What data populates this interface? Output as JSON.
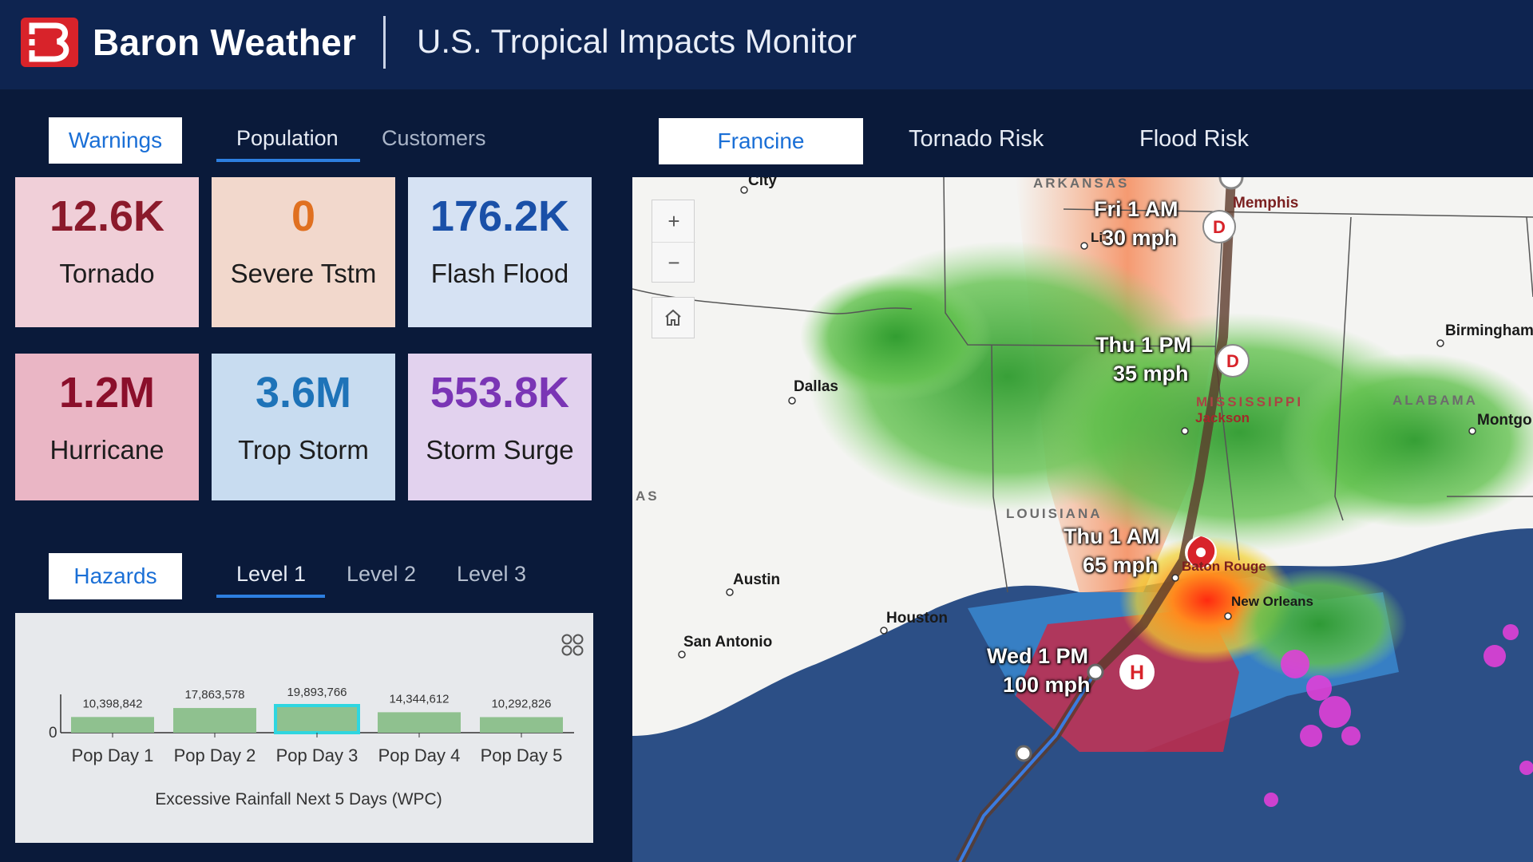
{
  "header": {
    "brand": "Baron Weather",
    "title": "U.S. Tropical Impacts Monitor"
  },
  "left_tabs": [
    {
      "label": "Warnings",
      "active": true
    },
    {
      "label": "Population",
      "underlined": true
    },
    {
      "label": "Customers"
    }
  ],
  "tiles": [
    {
      "value": "12.6K",
      "label": "Tornado",
      "bg": "#f0cfd8",
      "color": "#8b1a2b"
    },
    {
      "value": "0",
      "label": "Severe Tstm",
      "bg": "#f2d8cc",
      "color": "#e07020"
    },
    {
      "value": "176.2K",
      "label": "Flash Flood",
      "bg": "#d6e2f3",
      "color": "#1a50a8"
    },
    {
      "value": "1.2M",
      "label": "Hurricane",
      "bg": "#eab6c5",
      "color": "#8b0f2b"
    },
    {
      "value": "3.6M",
      "label": "Trop Storm",
      "bg": "#c8dcf0",
      "color": "#1e73b8"
    },
    {
      "value": "553.8K",
      "label": "Storm Surge",
      "bg": "#e2d2ee",
      "color": "#7a35b5"
    }
  ],
  "hazard_tabs": [
    {
      "label": "Hazards",
      "active": true
    },
    {
      "label": "Level 1",
      "underlined": true
    },
    {
      "label": "Level 2"
    },
    {
      "label": "Level 3"
    }
  ],
  "chart_data": {
    "type": "bar",
    "categories": [
      "Pop Day 1",
      "Pop Day 2",
      "Pop Day 3",
      "Pop Day 4",
      "Pop Day 5"
    ],
    "values": [
      10398842,
      17863578,
      19893766,
      14344612,
      10292826
    ],
    "value_labels": [
      "10,398,842",
      "17,863,578",
      "19,893,766",
      "14,344,612",
      "10,292,826"
    ],
    "highlighted_index": 2,
    "title": "Excessive Rainfall Next 5 Days (WPC)",
    "ytick_zero": "0",
    "bar_color": "#8fc18f",
    "highlight_color": "#2fd6e0"
  },
  "map_tabs": [
    {
      "label": "Francine",
      "active": true
    },
    {
      "label": "Tornado Risk"
    },
    {
      "label": "Flood Risk"
    }
  ],
  "map": {
    "zoom_in": "+",
    "zoom_out": "−",
    "cities": [
      "City",
      "Memphis",
      "Birmingham",
      "Dallas",
      "Jackson",
      "Montgo",
      "Austin",
      "Houston",
      "San Antonio",
      "New Orleans",
      "Baton Rouge",
      "Li"
    ],
    "states": [
      "ARKANSAS",
      "MISSISSIPPI",
      "ALABAMA",
      "LOUISIANA",
      "AS"
    ],
    "forecast_points": [
      {
        "time": "Fri 1 AM",
        "wind": "30 mph",
        "marker": "D"
      },
      {
        "time": "Thu 1 PM",
        "wind": "35 mph",
        "marker": "D"
      },
      {
        "time": "Thu 1 AM",
        "wind": "65 mph",
        "marker": "tropical-storm"
      },
      {
        "time": "Wed 1 PM",
        "wind": "100 mph",
        "marker": "H"
      }
    ]
  }
}
